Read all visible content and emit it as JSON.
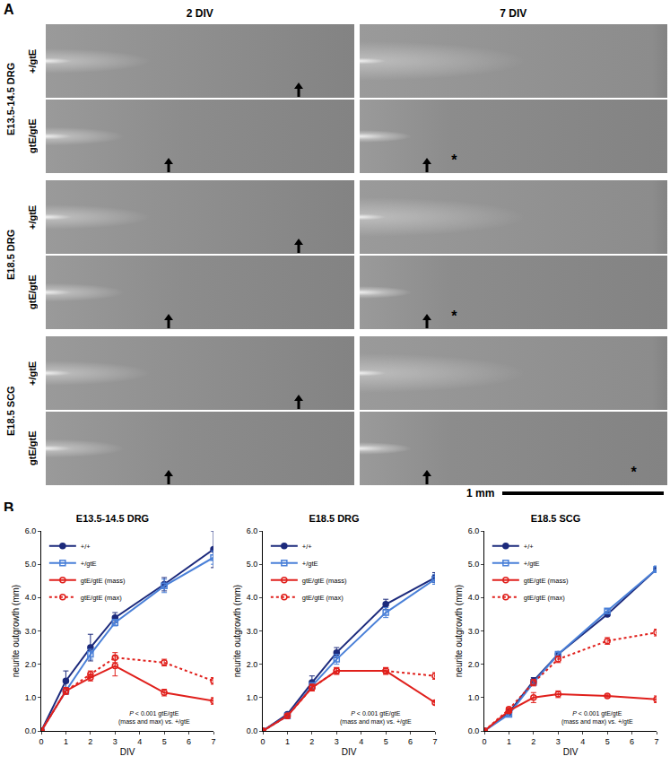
{
  "panel_a": {
    "label": "A",
    "columns": [
      "2 DIV",
      "7 DIV"
    ],
    "groups": [
      {
        "label": "E13.5-14.5 DRG",
        "rows": [
          {
            "genotype": "+/gtE",
            "mark_7div": null
          },
          {
            "genotype": "gtE/gtE",
            "mark_7div": "*"
          }
        ]
      },
      {
        "label": "E18.5 DRG",
        "rows": [
          {
            "genotype": "+/gtE",
            "mark_7div": null
          },
          {
            "genotype": "gtE/gtE",
            "mark_7div": "*"
          }
        ]
      },
      {
        "label": "E18.5 SCG",
        "rows": [
          {
            "genotype": "+/gtE",
            "mark_7div": null
          },
          {
            "genotype": "gtE/gtE",
            "mark_7div": "*"
          }
        ]
      }
    ],
    "scale_bar": "1 mm"
  },
  "panel_b_label": "B",
  "chart_data": [
    {
      "type": "line",
      "title": "E13.5-14.5 DRG",
      "x_label": "DIV",
      "y_label": "neurite outgrowth (mm)",
      "x": [
        0,
        1,
        2,
        3,
        5,
        7
      ],
      "xlim": [
        0,
        7
      ],
      "xticks": [
        0,
        1,
        2,
        3,
        4,
        5,
        6,
        7
      ],
      "ylim": [
        0,
        6
      ],
      "yticks": [
        {
          "value": 0,
          "label": "0.0"
        },
        {
          "value": 1,
          "label": "1.0"
        },
        {
          "value": 2,
          "label": "2.0"
        },
        {
          "value": 3,
          "label": "3.0"
        },
        {
          "value": 4,
          "label": "4.0"
        },
        {
          "value": 5,
          "label": "5.0"
        },
        {
          "value": 6,
          "label": "6.0"
        }
      ],
      "legend": "top left",
      "annotation": [
        "P < 0.001 gtE/gtE",
        "(mass and max) vs. +/gtE"
      ],
      "series": [
        {
          "name": "+/+",
          "color": "#1c2a7c",
          "marker": "triangle-open",
          "line_style": "solid",
          "values": [
            0,
            1.5,
            2.5,
            3.4,
            4.4,
            5.45
          ],
          "errors": [
            0,
            0.3,
            0.4,
            0.15,
            0.2,
            0.55
          ]
        },
        {
          "name": "+/gtE",
          "color": "#4a80d8",
          "marker": "square-open",
          "line_style": "solid",
          "values": [
            0,
            1.2,
            2.3,
            3.25,
            4.35,
            5.2
          ],
          "errors": [
            0,
            0.1,
            0.15,
            0.1,
            0.2,
            0.2
          ]
        },
        {
          "name": "gtE/gtE (mass)",
          "color": "#e0201c",
          "marker": "circle-open",
          "line_style": "solid",
          "values": [
            0,
            1.2,
            1.6,
            1.95,
            1.15,
            0.9
          ],
          "errors": [
            0,
            0.1,
            0.1,
            0.3,
            0.1,
            0.1
          ]
        },
        {
          "name": "gtE/gtE (max)",
          "color": "#e0201c",
          "marker": "circle-open",
          "line_style": "dot",
          "values": [
            0,
            1.2,
            1.7,
            2.2,
            2.05,
            1.5
          ],
          "errors": [
            0,
            0.1,
            0.1,
            0.15,
            0.1,
            0.1
          ]
        }
      ]
    },
    {
      "type": "line",
      "title": "E18.5 DRG",
      "x_label": "DIV",
      "y_label": "neurite outgrowth (mm)",
      "x": [
        0,
        1,
        2,
        3,
        5,
        7
      ],
      "xlim": [
        0,
        7
      ],
      "xticks": [
        0,
        1,
        2,
        3,
        4,
        5,
        6,
        7
      ],
      "ylim": [
        0,
        6
      ],
      "yticks": [
        {
          "value": 0,
          "label": "0.0"
        },
        {
          "value": 1,
          "label": "1.0"
        },
        {
          "value": 2,
          "label": "2.0"
        },
        {
          "value": 3,
          "label": "3.0"
        },
        {
          "value": 4,
          "label": "4.0"
        },
        {
          "value": 5,
          "label": "5.0"
        },
        {
          "value": 6,
          "label": "6.0"
        }
      ],
      "legend": "top left",
      "annotation": [
        "P < 0.001 gtE/gtE",
        "(mass and max) vs. +/gtE"
      ],
      "series": [
        {
          "name": "+/+",
          "color": "#1c2a7c",
          "marker": "triangle-open",
          "line_style": "solid",
          "values": [
            0,
            0.5,
            1.45,
            2.35,
            3.8,
            4.6
          ],
          "errors": [
            0,
            0.05,
            0.2,
            0.15,
            0.15,
            0.15
          ]
        },
        {
          "name": "+/gtE",
          "color": "#4a80d8",
          "marker": "square-open",
          "line_style": "solid",
          "values": [
            0,
            0.45,
            1.35,
            2.15,
            3.55,
            4.55
          ],
          "errors": [
            0,
            0.05,
            0.1,
            0.15,
            0.15,
            0.15
          ]
        },
        {
          "name": "gtE/gtE (mass)",
          "color": "#e0201c",
          "marker": "circle-open",
          "line_style": "solid",
          "values": [
            0,
            0.45,
            1.3,
            1.8,
            1.8,
            0.85
          ],
          "errors": [
            0,
            0.05,
            0.1,
            0.1,
            0.1,
            0.05
          ]
        },
        {
          "name": "gtE/gtE (max)",
          "color": "#e0201c",
          "marker": "circle-open",
          "line_style": "dot",
          "values": [
            0,
            0.45,
            1.3,
            1.8,
            1.8,
            1.65
          ],
          "errors": [
            0,
            0.05,
            0.1,
            0.1,
            0.1,
            0.1
          ]
        }
      ]
    },
    {
      "type": "line",
      "title": "E18.5 SCG",
      "x_label": "DIV",
      "y_label": "neurite outgrowth (mm)",
      "x": [
        0,
        1,
        2,
        3,
        5,
        7
      ],
      "xlim": [
        0,
        7
      ],
      "xticks": [
        0,
        1,
        2,
        3,
        4,
        5,
        6,
        7
      ],
      "ylim": [
        0,
        6
      ],
      "yticks": [
        {
          "value": 0,
          "label": "0.0"
        },
        {
          "value": 1,
          "label": "1.0"
        },
        {
          "value": 2,
          "label": "2.0"
        },
        {
          "value": 3,
          "label": "3.0"
        },
        {
          "value": 4,
          "label": "4.0"
        },
        {
          "value": 5,
          "label": "5.0"
        },
        {
          "value": 6,
          "label": "6.0"
        }
      ],
      "legend": "top left",
      "annotation": [
        "P < 0.001 gtE/gtE",
        "(mass and max) vs. +/gtE"
      ],
      "series": [
        {
          "name": "+/+",
          "color": "#1c2a7c",
          "marker": "triangle-open",
          "line_style": "solid",
          "values": [
            0,
            0.55,
            1.5,
            2.3,
            3.5,
            4.85
          ],
          "errors": [
            0,
            0.05,
            0.1,
            0.05,
            0.05,
            0.05
          ]
        },
        {
          "name": "+/gtE",
          "color": "#4a80d8",
          "marker": "square-open",
          "line_style": "solid",
          "values": [
            0,
            0.5,
            1.45,
            2.3,
            3.6,
            4.85
          ],
          "errors": [
            0,
            0.05,
            0.05,
            0.05,
            0.05,
            0.1
          ]
        },
        {
          "name": "gtE/gtE (mass)",
          "color": "#e0201c",
          "marker": "circle-open",
          "line_style": "solid",
          "values": [
            0,
            0.6,
            1.0,
            1.1,
            1.05,
            0.95
          ],
          "errors": [
            0,
            0.05,
            0.15,
            0.1,
            0.05,
            0.1
          ]
        },
        {
          "name": "gtE/gtE (max)",
          "color": "#e0201c",
          "marker": "circle-open",
          "line_style": "dot",
          "values": [
            0,
            0.65,
            1.45,
            2.15,
            2.7,
            2.95
          ],
          "errors": [
            0,
            0.05,
            0.1,
            0.1,
            0.1,
            0.1
          ]
        }
      ]
    }
  ]
}
